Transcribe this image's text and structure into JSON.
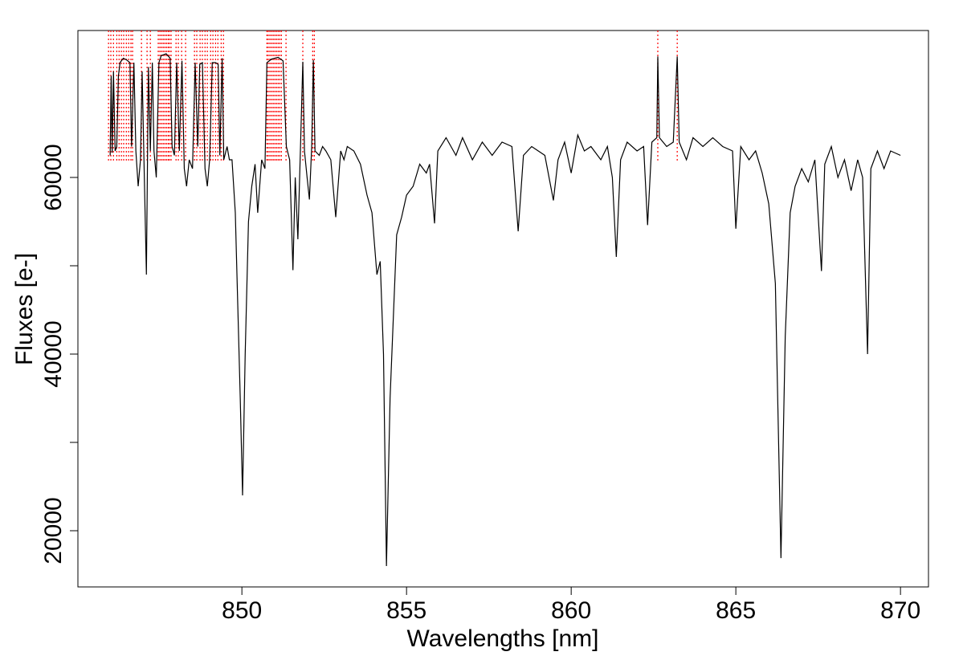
{
  "chart_data": {
    "type": "line",
    "xlabel": "Wavelengths [nm]",
    "ylabel": "Fluxes [e-]",
    "xlim": [
      845.02,
      870.85
    ],
    "ylim": [
      13636,
      76636
    ],
    "xticks": [
      850,
      855,
      860,
      865,
      870
    ],
    "yticks": [
      20000,
      {
        "value": 30000,
        "label": null
      },
      40000,
      {
        "value": 50000,
        "label": null
      },
      60000
    ],
    "x": [
      846.0,
      846.03,
      846.06,
      846.1,
      846.15,
      846.2,
      846.25,
      846.3,
      846.4,
      846.5,
      846.6,
      846.65,
      846.72,
      846.78,
      846.85,
      846.92,
      846.97,
      847.02,
      847.1,
      847.16,
      847.22,
      847.28,
      847.33,
      847.4,
      847.48,
      847.55,
      847.7,
      847.82,
      847.88,
      847.95,
      848.02,
      848.1,
      848.18,
      848.25,
      848.32,
      848.4,
      848.5,
      848.58,
      848.66,
      848.72,
      848.8,
      848.88,
      848.95,
      849.02,
      849.1,
      849.2,
      849.28,
      849.33,
      849.4,
      849.45,
      849.55,
      849.62,
      849.7,
      849.8,
      849.95,
      850.02,
      850.1,
      850.2,
      850.3,
      850.4,
      850.48,
      850.6,
      850.7,
      850.76,
      850.9,
      851.1,
      851.25,
      851.35,
      851.45,
      851.55,
      851.62,
      851.7,
      851.78,
      851.85,
      851.9,
      851.98,
      852.05,
      852.12,
      852.17,
      852.22,
      852.35,
      852.45,
      852.55,
      852.7,
      852.85,
      853.0,
      853.1,
      853.2,
      853.4,
      853.6,
      853.8,
      853.95,
      854.1,
      854.2,
      854.3,
      854.39,
      854.5,
      854.7,
      854.85,
      855.0,
      855.2,
      855.4,
      855.6,
      855.7,
      855.85,
      855.95,
      856.2,
      856.5,
      856.7,
      857.0,
      857.3,
      857.6,
      857.9,
      858.2,
      858.39,
      858.55,
      858.8,
      859.0,
      859.2,
      859.46,
      859.6,
      859.8,
      860.0,
      860.2,
      860.4,
      860.6,
      860.9,
      861.1,
      861.25,
      861.37,
      861.5,
      861.7,
      862.0,
      862.2,
      862.32,
      862.45,
      862.6,
      862.63,
      862.68,
      862.9,
      863.1,
      863.22,
      863.28,
      863.5,
      863.7,
      864.0,
      864.3,
      864.6,
      864.9,
      865.0,
      865.15,
      865.4,
      865.6,
      865.8,
      866.0,
      866.2,
      866.37,
      866.5,
      866.65,
      866.8,
      867.0,
      867.2,
      867.4,
      867.6,
      867.7,
      867.9,
      868.1,
      868.3,
      868.5,
      868.7,
      868.85,
      869.0,
      869.1,
      869.3,
      869.5,
      869.7,
      870.0
    ],
    "series": [
      {
        "color": "#000000",
        "values": [
          62500,
          71500,
          62800,
          72000,
          63000,
          63500,
          71500,
          73000,
          73500,
          73300,
          73000,
          63500,
          73000,
          63000,
          59000,
          62000,
          72000,
          63000,
          49000,
          72500,
          63000,
          73000,
          63000,
          60000,
          73000,
          73800,
          74000,
          73500,
          63500,
          62500,
          73000,
          63000,
          73200,
          61000,
          59000,
          62000,
          61000,
          73000,
          63500,
          72800,
          73000,
          61000,
          59000,
          62000,
          73000,
          73000,
          72800,
          62500,
          73500,
          62000,
          63500,
          62000,
          62000,
          56000,
          35000,
          24000,
          40000,
          55000,
          59000,
          61500,
          56000,
          62000,
          61000,
          73000,
          73400,
          73600,
          73200,
          63500,
          62000,
          49500,
          60000,
          53000,
          63500,
          73100,
          63000,
          60000,
          57500,
          63500,
          73300,
          63000,
          62500,
          63500,
          63000,
          62000,
          55500,
          63000,
          62000,
          63500,
          63000,
          61500,
          58000,
          56000,
          49000,
          50500,
          40000,
          16000,
          35000,
          53500,
          55500,
          58000,
          59000,
          61500,
          60500,
          61500,
          54800,
          63000,
          64500,
          62500,
          64500,
          62000,
          64000,
          62500,
          64000,
          63500,
          53900,
          62500,
          63500,
          63000,
          62500,
          57400,
          62000,
          64000,
          60500,
          64800,
          63000,
          63500,
          62000,
          63500,
          60000,
          51000,
          62000,
          64000,
          63000,
          63500,
          54600,
          64000,
          64500,
          73700,
          64500,
          63500,
          64000,
          73700,
          64000,
          62000,
          64500,
          63500,
          64500,
          63500,
          63000,
          54200,
          63500,
          62000,
          63000,
          60500,
          57000,
          48000,
          16900,
          42000,
          56000,
          59000,
          61000,
          59500,
          62000,
          49400,
          61500,
          63500,
          60000,
          62000,
          58500,
          62000,
          60000,
          40000,
          61000,
          63000,
          61000,
          63000,
          62500
        ]
      }
    ],
    "markers": {
      "color": "#ff0000",
      "x": [
        845.95,
        846.02,
        846.1,
        846.2,
        846.27,
        846.34,
        846.41,
        846.49,
        846.56,
        846.63,
        846.68,
        846.95,
        847.12,
        847.22,
        847.46,
        847.51,
        847.56,
        847.61,
        847.66,
        847.71,
        847.76,
        847.8,
        847.85,
        848.0,
        848.07,
        848.17,
        848.29,
        848.56,
        848.63,
        848.73,
        848.8,
        848.88,
        848.95,
        849.05,
        849.12,
        849.2,
        849.27,
        849.37,
        849.44,
        850.76,
        850.8,
        850.85,
        850.9,
        850.95,
        851.0,
        851.05,
        851.1,
        851.15,
        851.2,
        851.34,
        851.85,
        852.15,
        852.2,
        862.63,
        863.22
      ]
    }
  }
}
